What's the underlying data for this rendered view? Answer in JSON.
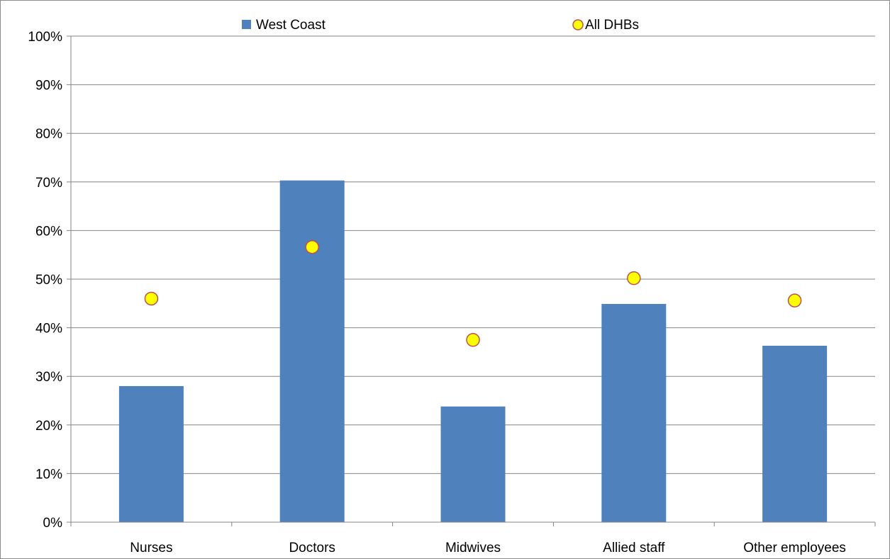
{
  "chart_data": {
    "type": "bar",
    "categories": [
      "Nurses",
      "Doctors",
      "Midwives",
      "Allied staff",
      "Other employees"
    ],
    "series": [
      {
        "name": "West Coast",
        "kind": "bar",
        "color": "#4f81bd",
        "values": [
          0.28,
          0.703,
          0.238,
          0.449,
          0.363
        ]
      },
      {
        "name": "All DHBs",
        "kind": "marker",
        "color": "#ffff00",
        "edge_color": "#c0504d",
        "values": [
          0.46,
          0.566,
          0.375,
          0.502,
          0.456
        ]
      }
    ],
    "ylim": [
      0,
      1
    ],
    "yticks": [
      "0%",
      "10%",
      "20%",
      "30%",
      "40%",
      "50%",
      "60%",
      "70%",
      "80%",
      "90%",
      "100%"
    ],
    "ytick_values": [
      0,
      0.1,
      0.2,
      0.3,
      0.4,
      0.5,
      0.6,
      0.7,
      0.8,
      0.9,
      1.0
    ],
    "title": "",
    "xlabel": "",
    "ylabel": "",
    "grid": true,
    "legend_position": "top",
    "gridline_color": "#868686"
  }
}
